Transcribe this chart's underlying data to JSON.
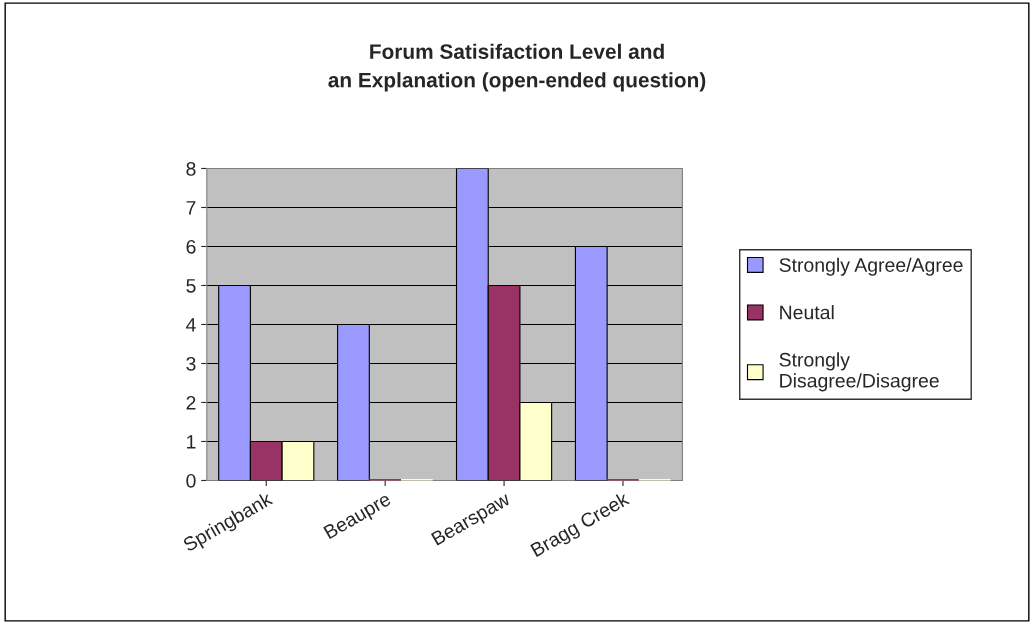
{
  "chart_data": {
    "type": "bar",
    "title": "Forum Satisifaction Level and\nan Explanation (open-ended question)",
    "categories": [
      "Springbank",
      "Beaupre",
      "Bearspaw",
      "Bragg Creek"
    ],
    "series": [
      {
        "name": "Strongly Agree/Agree",
        "color": "#9999ff",
        "values": [
          5,
          4,
          8,
          6
        ]
      },
      {
        "name": "Neutal",
        "color": "#993366",
        "values": [
          1,
          0,
          5,
          0
        ]
      },
      {
        "name": "Strongly\nDisagree/Disagree",
        "color": "#ffffcc",
        "values": [
          1,
          0,
          2,
          0
        ]
      }
    ],
    "ylim": [
      0,
      8
    ],
    "yticks": [
      0,
      1,
      2,
      3,
      4,
      5,
      6,
      7,
      8
    ],
    "grid": "y",
    "legend": "right"
  }
}
